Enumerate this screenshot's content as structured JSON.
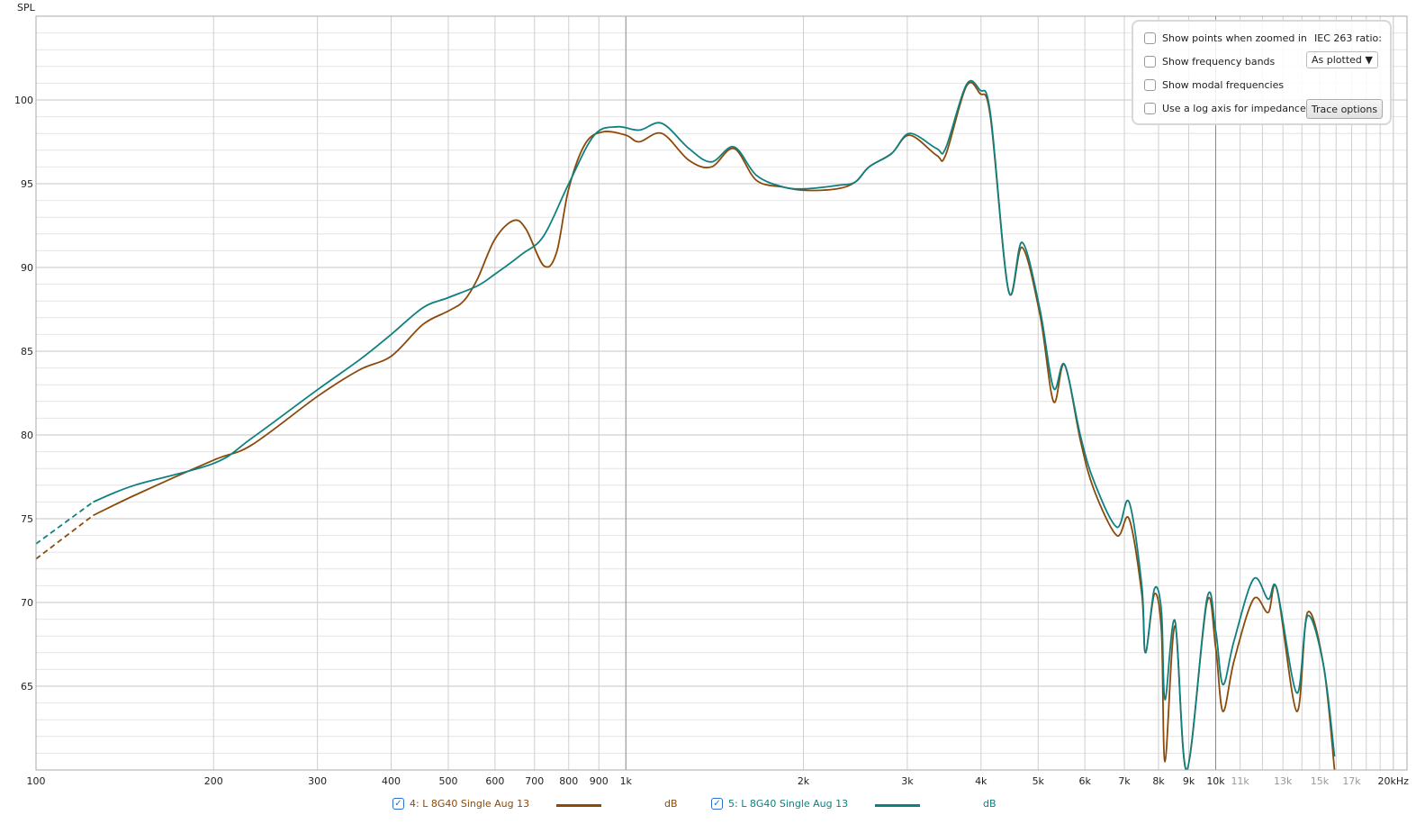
{
  "chart_data": {
    "type": "line",
    "title": "",
    "ylabel": "SPL",
    "xlabel": "",
    "x_scale": "log",
    "xlim": [
      100,
      21100
    ],
    "ylim": [
      60,
      105
    ],
    "grid": true,
    "x_ticks": [
      {
        "v": 100,
        "label": "100"
      },
      {
        "v": 200,
        "label": "200"
      },
      {
        "v": 300,
        "label": "300"
      },
      {
        "v": 400,
        "label": "400"
      },
      {
        "v": 500,
        "label": "500"
      },
      {
        "v": 600,
        "label": "600"
      },
      {
        "v": 700,
        "label": "700"
      },
      {
        "v": 800,
        "label": "800"
      },
      {
        "v": 900,
        "label": "900"
      },
      {
        "v": 1000,
        "label": "1k"
      },
      {
        "v": 2000,
        "label": "2k"
      },
      {
        "v": 3000,
        "label": "3k"
      },
      {
        "v": 4000,
        "label": "4k"
      },
      {
        "v": 5000,
        "label": "5k"
      },
      {
        "v": 6000,
        "label": "6k"
      },
      {
        "v": 7000,
        "label": "7k"
      },
      {
        "v": 8000,
        "label": "8k"
      },
      {
        "v": 9000,
        "label": "9k"
      },
      {
        "v": 10000,
        "label": "10k"
      },
      {
        "v": 11000,
        "label": "11k",
        "minor": true
      },
      {
        "v": 13000,
        "label": "13k",
        "minor": true
      },
      {
        "v": 15000,
        "label": "15k",
        "minor": true
      },
      {
        "v": 17000,
        "label": "17k",
        "minor": true
      },
      {
        "v": 20000,
        "label": "20kHz"
      }
    ],
    "y_ticks": [
      65,
      70,
      75,
      80,
      85,
      90,
      95,
      100
    ],
    "dashed_below_hz": 125,
    "series": [
      {
        "name": "4: L 8G40 Single Aug 13",
        "unit": "dB",
        "color": "#8B4A0A",
        "x": [
          100,
          125,
          147,
          200,
          232,
          300,
          354,
          400,
          453,
          500,
          531,
          560,
          600,
          645,
          677,
          726,
          763,
          800,
          854,
          916,
          1000,
          1054,
          1151,
          1279,
          1396,
          1525,
          1665,
          1849,
          2020,
          2284,
          2449,
          2583,
          2821,
          3027,
          3363,
          3483,
          3776,
          3981,
          4150,
          4454,
          4697,
          5035,
          5309,
          5543,
          5902,
          6223,
          6795,
          7130,
          7493,
          7601,
          7871,
          8091,
          8205,
          8531,
          8930,
          9660,
          10000,
          10285,
          10740,
          11590,
          12270,
          12700,
          13720,
          14310,
          15240,
          15900
        ],
        "y": [
          72.6,
          75.2,
          76.4,
          78.5,
          79.4,
          82.3,
          83.9,
          84.7,
          86.6,
          87.4,
          88.0,
          89.3,
          91.7,
          92.8,
          92.3,
          90.1,
          90.9,
          94.7,
          97.4,
          98.1,
          97.9,
          97.5,
          98.0,
          96.4,
          96.0,
          97.1,
          95.2,
          94.8,
          94.6,
          94.7,
          95.1,
          96.0,
          96.8,
          97.9,
          96.7,
          96.7,
          100.8,
          100.4,
          99.0,
          88.6,
          91.2,
          87.2,
          82.0,
          84.2,
          79.6,
          76.7,
          74.0,
          75.0,
          70.5,
          67.0,
          70.5,
          68.3,
          60.5,
          68.6,
          60.0,
          70.0,
          67.3,
          63.5,
          66.5,
          70.2,
          69.4,
          70.8,
          63.5,
          69.4,
          66.2,
          60.0
        ]
      },
      {
        "name": "5: L 8G40 Single Aug 13",
        "unit": "dB",
        "color": "#0E8080",
        "x": [
          100,
          125,
          147,
          200,
          232,
          300,
          354,
          400,
          453,
          500,
          560,
          600,
          667,
          726,
          800,
          884,
          966,
          1054,
          1151,
          1279,
          1396,
          1525,
          1665,
          1849,
          2020,
          2284,
          2449,
          2583,
          2821,
          3027,
          3363,
          3483,
          3776,
          3981,
          4150,
          4454,
          4697,
          5035,
          5309,
          5543,
          5902,
          6223,
          6795,
          7130,
          7493,
          7601,
          7871,
          8091,
          8205,
          8531,
          8930,
          9660,
          10000,
          10285,
          10740,
          11590,
          12270,
          12700,
          13720,
          14310,
          15240,
          15900
        ],
        "y": [
          73.5,
          76.0,
          77.0,
          78.3,
          79.8,
          82.7,
          84.5,
          86.0,
          87.6,
          88.2,
          88.9,
          89.6,
          90.8,
          91.9,
          95.0,
          97.9,
          98.4,
          98.2,
          98.6,
          97.1,
          96.3,
          97.2,
          95.5,
          94.8,
          94.7,
          94.9,
          95.1,
          96.0,
          96.8,
          98.0,
          97.1,
          97.1,
          100.9,
          100.6,
          99.2,
          88.6,
          91.5,
          87.5,
          82.8,
          84.2,
          79.9,
          77.2,
          74.5,
          76.0,
          71.0,
          67.0,
          70.8,
          69.5,
          64.2,
          68.9,
          60.0,
          70.2,
          68.3,
          65.1,
          67.7,
          71.4,
          70.2,
          70.8,
          64.6,
          69.2,
          66.2,
          60.8
        ]
      }
    ]
  },
  "options": {
    "show_points": "Show points when zoomed in",
    "show_bands": "Show frequency bands",
    "show_modal": "Show modal frequencies",
    "log_impedance": "Use a log axis for impedance",
    "iec_label": "IEC 263 ratio:",
    "iec_value": "As plotted",
    "trace_options": "Trace options"
  }
}
